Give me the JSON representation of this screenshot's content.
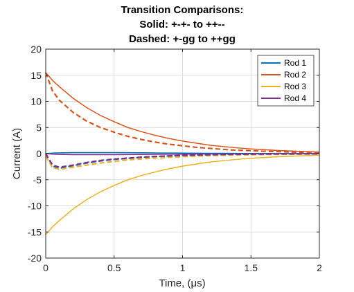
{
  "chart_data": {
    "type": "line",
    "title": [
      "Transition Comparisons:",
      "Solid: +-+- to ++--",
      "Dashed: +-gg to ++gg"
    ],
    "xlabel": "Time, (μs)",
    "ylabel": "Current (A)",
    "xlim": [
      0,
      2
    ],
    "ylim": [
      -20,
      20
    ],
    "xticks": [
      0,
      0.5,
      1,
      1.5,
      2
    ],
    "xtick_labels": [
      "0",
      "0.5",
      "1",
      "1.5",
      "2"
    ],
    "yticks": [
      20,
      15,
      10,
      5,
      0,
      -5,
      -10,
      -15,
      -20
    ],
    "ytick_labels": [
      "20",
      "15",
      "10",
      "5",
      "0",
      "-5",
      "-10",
      "-15",
      "-20"
    ],
    "grid": true,
    "legend_position": "top-right",
    "x": [
      0,
      0.05,
      0.1,
      0.2,
      0.3,
      0.4,
      0.5,
      0.6,
      0.7,
      0.8,
      0.9,
      1.0,
      1.1,
      1.2,
      1.3,
      1.4,
      1.5,
      1.6,
      1.7,
      1.8,
      1.9,
      2.0
    ],
    "series": [
      {
        "name": "Rod 1",
        "color": "#0072BD",
        "style": "solid",
        "values": [
          0,
          0.1,
          0.15,
          0.2,
          0.2,
          0.2,
          0.2,
          0.18,
          0.16,
          0.14,
          0.12,
          0.1,
          0.08,
          0.07,
          0.06,
          0.05,
          0.04,
          0.03,
          0.02,
          0.02,
          0.01,
          0.01
        ]
      },
      {
        "name": "Rod 2",
        "color": "#D95319",
        "style": "solid",
        "values": [
          15.5,
          14.0,
          12.8,
          10.6,
          8.8,
          7.3,
          6.1,
          5.0,
          4.2,
          3.5,
          2.9,
          2.4,
          2.0,
          1.6,
          1.35,
          1.1,
          0.9,
          0.75,
          0.6,
          0.5,
          0.4,
          0.3
        ]
      },
      {
        "name": "Rod 3",
        "color": "#EDB120",
        "style": "solid",
        "values": [
          -15.5,
          -14.0,
          -12.8,
          -10.6,
          -8.8,
          -7.3,
          -6.1,
          -5.0,
          -4.2,
          -3.5,
          -2.9,
          -2.4,
          -2.0,
          -1.6,
          -1.35,
          -1.1,
          -0.9,
          -0.75,
          -0.6,
          -0.5,
          -0.4,
          -0.3
        ]
      },
      {
        "name": "Rod 4",
        "color": "#7E2F8E",
        "style": "solid",
        "values": [
          0,
          -0.1,
          -0.15,
          -0.2,
          -0.2,
          -0.2,
          -0.2,
          -0.18,
          -0.16,
          -0.14,
          -0.12,
          -0.1,
          -0.08,
          -0.07,
          -0.06,
          -0.05,
          -0.04,
          -0.03,
          -0.02,
          -0.02,
          -0.01,
          -0.01
        ]
      },
      {
        "name": "",
        "color": "#0072BD",
        "style": "dashed",
        "values": [
          0,
          -2.4,
          -2.8,
          -2.3,
          -1.8,
          -1.4,
          -1.1,
          -0.9,
          -0.7,
          -0.55,
          -0.45,
          -0.35,
          -0.28,
          -0.22,
          -0.17,
          -0.13,
          -0.1,
          -0.08,
          -0.06,
          -0.05,
          -0.04,
          -0.03
        ]
      },
      {
        "name": "",
        "color": "#D95319",
        "style": "dashed",
        "values": [
          15.5,
          12.0,
          10.2,
          7.9,
          6.2,
          5.0,
          4.1,
          3.3,
          2.7,
          2.2,
          1.8,
          1.5,
          1.2,
          1.0,
          0.8,
          0.65,
          0.55,
          0.45,
          0.37,
          0.3,
          0.25,
          0.2
        ]
      },
      {
        "name": "",
        "color": "#EDB120",
        "style": "dashed",
        "values": [
          -0.5,
          -2.7,
          -3.0,
          -2.6,
          -2.2,
          -1.8,
          -1.5,
          -1.2,
          -1.0,
          -0.85,
          -0.7,
          -0.58,
          -0.48,
          -0.4,
          -0.33,
          -0.27,
          -0.22,
          -0.18,
          -0.15,
          -0.12,
          -0.1,
          -0.08
        ]
      },
      {
        "name": "",
        "color": "#7E2F8E",
        "style": "dashed",
        "values": [
          0,
          -2.2,
          -2.6,
          -2.2,
          -1.7,
          -1.3,
          -1.05,
          -0.85,
          -0.68,
          -0.54,
          -0.44,
          -0.35,
          -0.28,
          -0.22,
          -0.17,
          -0.13,
          -0.1,
          -0.08,
          -0.06,
          -0.05,
          -0.04,
          -0.03
        ]
      }
    ]
  }
}
